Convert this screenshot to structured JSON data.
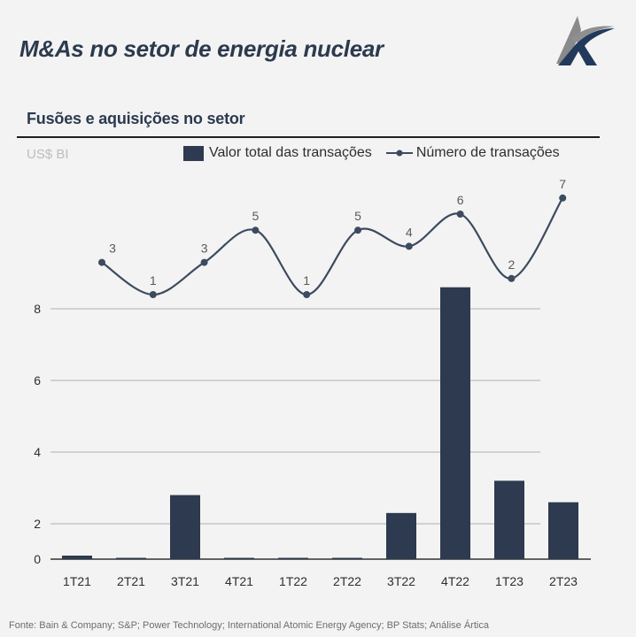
{
  "header": {
    "title": "M&As no setor de energia nuclear",
    "logo": "artica-logo-icon"
  },
  "section": {
    "subtitle": "Fusões e aquisições no setor",
    "unit_label": "US$ BI"
  },
  "legend": {
    "bar_label": "Valor total das transações",
    "line_label": "Número de transações"
  },
  "colors": {
    "bar": "#2d3a4f",
    "line": "#3d4a60",
    "grid": "#bdbdbd",
    "background": "#f3f3f3"
  },
  "chart_data": {
    "type": "bar+line",
    "title": "Fusões e aquisições no setor",
    "ylabel": "US$ BI",
    "xlabel": "",
    "categories": [
      "1T21",
      "2T21",
      "3T21",
      "4T21",
      "1T22",
      "2T22",
      "3T22",
      "4T22",
      "1T23",
      "2T23"
    ],
    "yticks": [
      0,
      2,
      4,
      6,
      8
    ],
    "ylim": [
      0,
      9
    ],
    "grid": true,
    "legend_position": "top-right",
    "series": [
      {
        "name": "Valor total das transações",
        "type": "bar",
        "values": [
          0.2,
          0.03,
          2.8,
          0.03,
          0.03,
          0.03,
          2.3,
          8.6,
          3.2,
          2.6
        ]
      },
      {
        "name": "Número de transações",
        "type": "line",
        "values": [
          3,
          1,
          3,
          5,
          1,
          5,
          4,
          6,
          2,
          7
        ],
        "data_labels": true
      }
    ]
  },
  "footer": {
    "source": "Fonte: Bain & Company; S&P; Power Technology; International Atomic Energy Agency; BP Stats; Análise Ártica"
  }
}
